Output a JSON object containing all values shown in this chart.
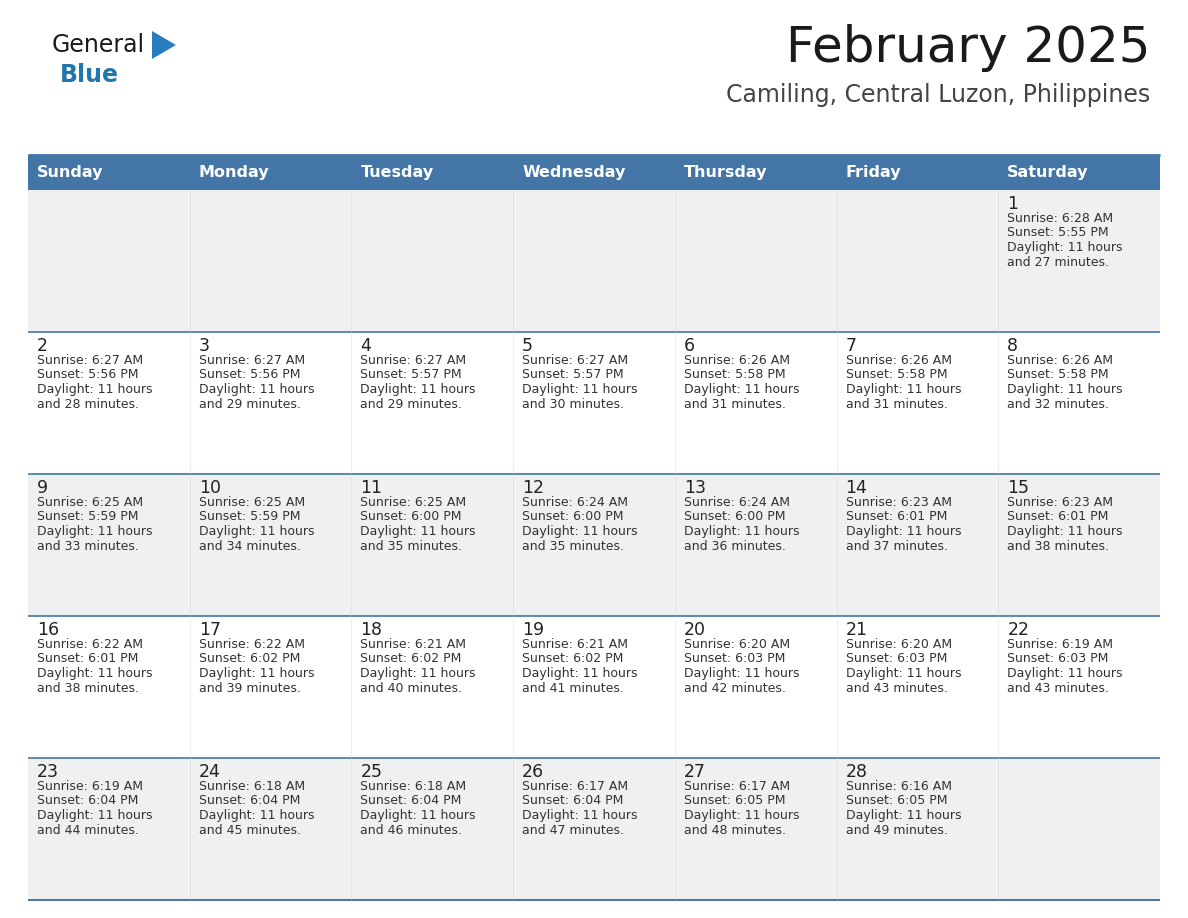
{
  "title": "February 2025",
  "subtitle": "Camiling, Central Luzon, Philippines",
  "header_bg": "#4375a7",
  "header_text": "#FFFFFF",
  "day_names": [
    "Sunday",
    "Monday",
    "Tuesday",
    "Wednesday",
    "Thursday",
    "Friday",
    "Saturday"
  ],
  "row_bg_odd": "#f0f0f0",
  "row_bg_even": "#ffffff",
  "line_color": "#4375a7",
  "day_number_color": "#222222",
  "info_text_color": "#333333",
  "title_color": "#1a1a1a",
  "subtitle_color": "#444444",
  "logo_general_color": "#1a1a1a",
  "logo_blue_color": "#2176ae",
  "logo_triangle_color": "#2b7bbf",
  "calendar_data": [
    [
      null,
      null,
      null,
      null,
      null,
      null,
      {
        "day": 1,
        "sunrise": "6:28 AM",
        "sunset": "5:55 PM",
        "daylight": "11 hours and 27 minutes"
      }
    ],
    [
      {
        "day": 2,
        "sunrise": "6:27 AM",
        "sunset": "5:56 PM",
        "daylight": "11 hours and 28 minutes"
      },
      {
        "day": 3,
        "sunrise": "6:27 AM",
        "sunset": "5:56 PM",
        "daylight": "11 hours and 29 minutes"
      },
      {
        "day": 4,
        "sunrise": "6:27 AM",
        "sunset": "5:57 PM",
        "daylight": "11 hours and 29 minutes"
      },
      {
        "day": 5,
        "sunrise": "6:27 AM",
        "sunset": "5:57 PM",
        "daylight": "11 hours and 30 minutes"
      },
      {
        "day": 6,
        "sunrise": "6:26 AM",
        "sunset": "5:58 PM",
        "daylight": "11 hours and 31 minutes"
      },
      {
        "day": 7,
        "sunrise": "6:26 AM",
        "sunset": "5:58 PM",
        "daylight": "11 hours and 31 minutes"
      },
      {
        "day": 8,
        "sunrise": "6:26 AM",
        "sunset": "5:58 PM",
        "daylight": "11 hours and 32 minutes"
      }
    ],
    [
      {
        "day": 9,
        "sunrise": "6:25 AM",
        "sunset": "5:59 PM",
        "daylight": "11 hours and 33 minutes"
      },
      {
        "day": 10,
        "sunrise": "6:25 AM",
        "sunset": "5:59 PM",
        "daylight": "11 hours and 34 minutes"
      },
      {
        "day": 11,
        "sunrise": "6:25 AM",
        "sunset": "6:00 PM",
        "daylight": "11 hours and 35 minutes"
      },
      {
        "day": 12,
        "sunrise": "6:24 AM",
        "sunset": "6:00 PM",
        "daylight": "11 hours and 35 minutes"
      },
      {
        "day": 13,
        "sunrise": "6:24 AM",
        "sunset": "6:00 PM",
        "daylight": "11 hours and 36 minutes"
      },
      {
        "day": 14,
        "sunrise": "6:23 AM",
        "sunset": "6:01 PM",
        "daylight": "11 hours and 37 minutes"
      },
      {
        "day": 15,
        "sunrise": "6:23 AM",
        "sunset": "6:01 PM",
        "daylight": "11 hours and 38 minutes"
      }
    ],
    [
      {
        "day": 16,
        "sunrise": "6:22 AM",
        "sunset": "6:01 PM",
        "daylight": "11 hours and 38 minutes"
      },
      {
        "day": 17,
        "sunrise": "6:22 AM",
        "sunset": "6:02 PM",
        "daylight": "11 hours and 39 minutes"
      },
      {
        "day": 18,
        "sunrise": "6:21 AM",
        "sunset": "6:02 PM",
        "daylight": "11 hours and 40 minutes"
      },
      {
        "day": 19,
        "sunrise": "6:21 AM",
        "sunset": "6:02 PM",
        "daylight": "11 hours and 41 minutes"
      },
      {
        "day": 20,
        "sunrise": "6:20 AM",
        "sunset": "6:03 PM",
        "daylight": "11 hours and 42 minutes"
      },
      {
        "day": 21,
        "sunrise": "6:20 AM",
        "sunset": "6:03 PM",
        "daylight": "11 hours and 43 minutes"
      },
      {
        "day": 22,
        "sunrise": "6:19 AM",
        "sunset": "6:03 PM",
        "daylight": "11 hours and 43 minutes"
      }
    ],
    [
      {
        "day": 23,
        "sunrise": "6:19 AM",
        "sunset": "6:04 PM",
        "daylight": "11 hours and 44 minutes"
      },
      {
        "day": 24,
        "sunrise": "6:18 AM",
        "sunset": "6:04 PM",
        "daylight": "11 hours and 45 minutes"
      },
      {
        "day": 25,
        "sunrise": "6:18 AM",
        "sunset": "6:04 PM",
        "daylight": "11 hours and 46 minutes"
      },
      {
        "day": 26,
        "sunrise": "6:17 AM",
        "sunset": "6:04 PM",
        "daylight": "11 hours and 47 minutes"
      },
      {
        "day": 27,
        "sunrise": "6:17 AM",
        "sunset": "6:05 PM",
        "daylight": "11 hours and 48 minutes"
      },
      {
        "day": 28,
        "sunrise": "6:16 AM",
        "sunset": "6:05 PM",
        "daylight": "11 hours and 49 minutes"
      },
      null
    ]
  ],
  "figsize": [
    11.88,
    9.18
  ],
  "dpi": 100
}
